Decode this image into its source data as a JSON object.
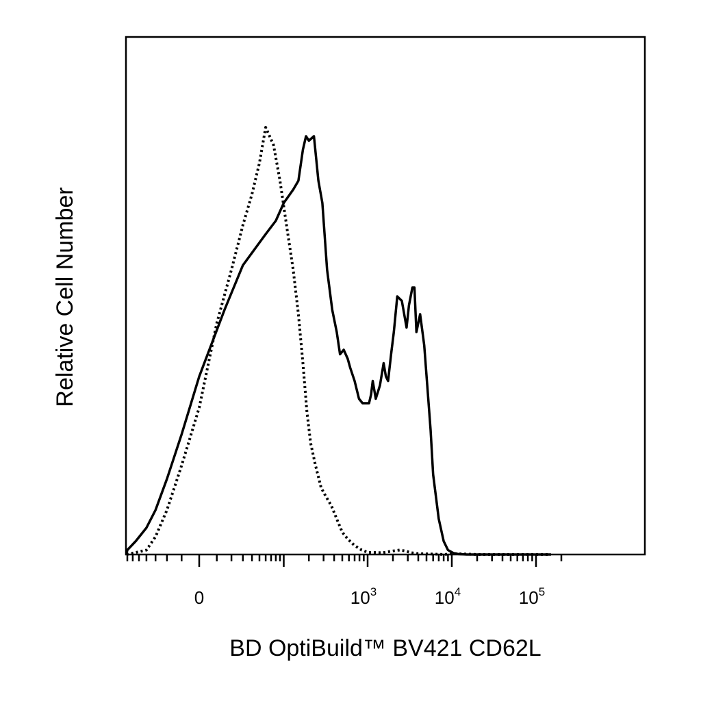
{
  "chart_data": {
    "type": "area",
    "title": "",
    "xlabel": "BD OptiBuild™ BV421 CD62L",
    "ylabel": "Relative Cell Number",
    "x_scale": "biexponential",
    "xlim": [
      -150,
      200000
    ],
    "ylim": [
      0,
      1
    ],
    "grid": false,
    "legend": "none",
    "x_ticks": [
      {
        "value": 0,
        "base": "0",
        "exp": ""
      },
      {
        "value": 1000,
        "base": "10",
        "exp": "3"
      },
      {
        "value": 10000,
        "base": "10",
        "exp": "4"
      },
      {
        "value": 100000,
        "base": "10",
        "exp": "5"
      }
    ],
    "series": [
      {
        "style": "solid",
        "color": "#000000",
        "x": [
          -120,
          -90,
          -70,
          -55,
          -40,
          -30,
          -20,
          -10,
          0,
          15,
          30,
          60,
          80,
          100,
          130,
          150,
          170,
          185,
          200,
          230,
          260,
          290,
          330,
          380,
          430,
          470,
          520,
          580,
          620,
          700,
          790,
          870,
          960,
          1040,
          1100,
          1150,
          1250,
          1400,
          1550,
          1650,
          1750,
          1900,
          2050,
          2250,
          2550,
          2900,
          3100,
          3400,
          3600,
          3800,
          4200,
          4700,
          5200,
          5600,
          6000,
          7000,
          8000,
          9000,
          10500,
          12000,
          15000,
          18000,
          22000,
          27000,
          32000,
          40000,
          50000,
          70000,
          100000,
          150000
        ],
        "y": [
          0,
          0.003,
          0.01,
          0.03,
          0.06,
          0.1,
          0.17,
          0.27,
          0.4,
          0.55,
          0.65,
          0.72,
          0.75,
          0.79,
          0.82,
          0.84,
          0.91,
          0.94,
          0.93,
          0.94,
          0.84,
          0.79,
          0.64,
          0.55,
          0.5,
          0.45,
          0.46,
          0.44,
          0.42,
          0.39,
          0.35,
          0.34,
          0.34,
          0.34,
          0.36,
          0.39,
          0.35,
          0.38,
          0.43,
          0.4,
          0.39,
          0.45,
          0.5,
          0.58,
          0.57,
          0.51,
          0.56,
          0.6,
          0.6,
          0.5,
          0.54,
          0.47,
          0.36,
          0.28,
          0.18,
          0.08,
          0.03,
          0.01,
          0.003,
          0.001,
          0,
          0,
          0,
          0,
          0,
          0,
          0,
          0,
          0,
          0
        ]
      },
      {
        "style": "dotted",
        "color": "#000000",
        "x": [
          -120,
          -60,
          -40,
          -30,
          -20,
          -10,
          0,
          10,
          20,
          30,
          40,
          50,
          60,
          75,
          90,
          110,
          130,
          150,
          170,
          190,
          210,
          240,
          280,
          320,
          370,
          430,
          500,
          580,
          700,
          850,
          1000,
          1500,
          2000,
          2400,
          2800,
          3300,
          4000,
          6000,
          8000,
          11000,
          15000,
          20000,
          30000,
          50000,
          100000,
          150000
        ],
        "y": [
          0,
          0.003,
          0.01,
          0.04,
          0.1,
          0.2,
          0.33,
          0.52,
          0.64,
          0.74,
          0.81,
          0.88,
          0.96,
          0.92,
          0.84,
          0.73,
          0.64,
          0.54,
          0.43,
          0.32,
          0.25,
          0.2,
          0.15,
          0.13,
          0.11,
          0.08,
          0.05,
          0.035,
          0.02,
          0.01,
          0.005,
          0.004,
          0.008,
          0.01,
          0.008,
          0.004,
          0.002,
          0.001,
          0,
          0.002,
          0.001,
          0,
          0,
          0,
          0,
          0
        ]
      }
    ]
  }
}
